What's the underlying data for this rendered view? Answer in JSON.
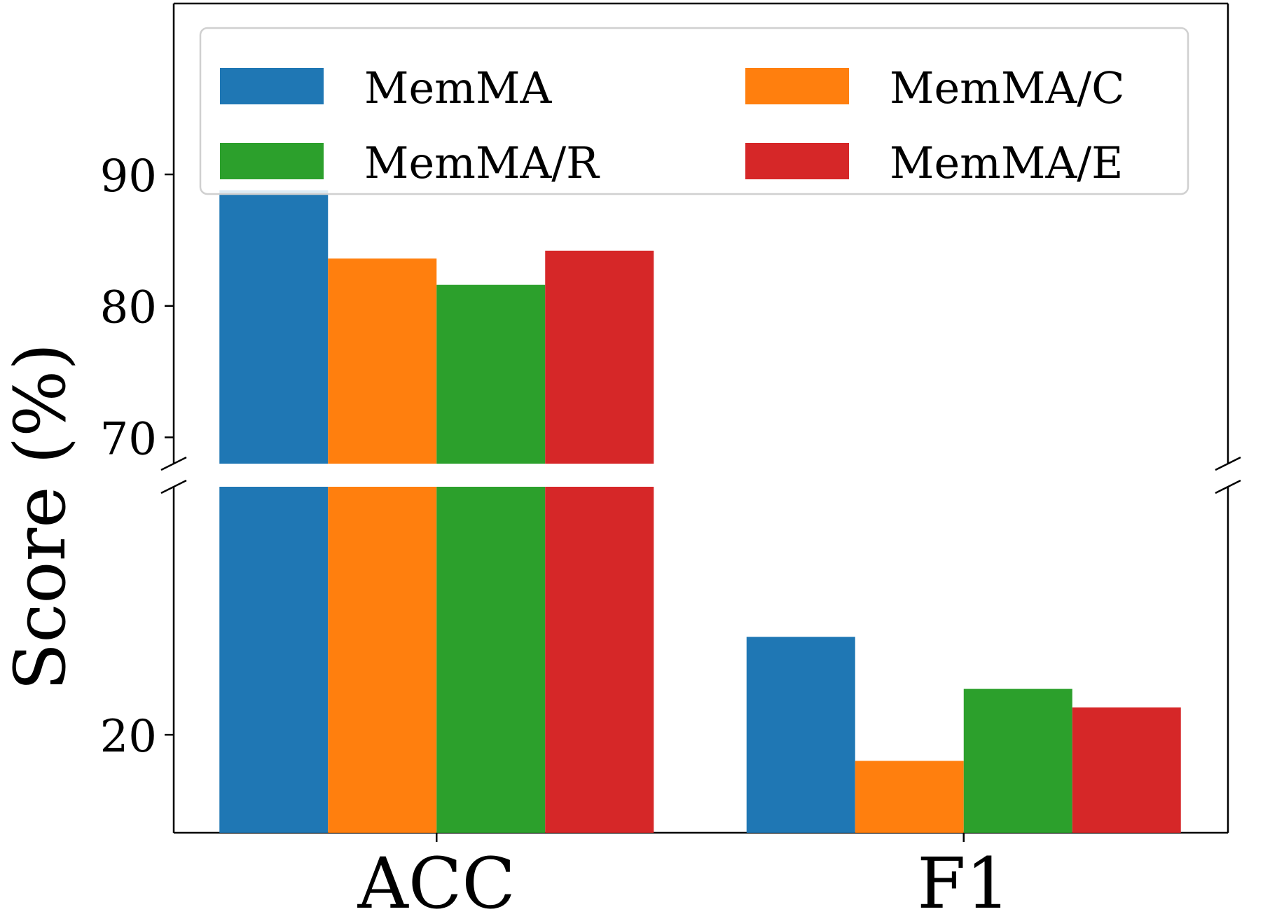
{
  "chart_data": {
    "type": "bar",
    "broken_axis": true,
    "ylabel": "Score (%)",
    "categories": [
      "ACC",
      "F1"
    ],
    "series": [
      {
        "name": "MemMA",
        "color": "#1f77b4",
        "values": [
          88.8,
          27.9
        ]
      },
      {
        "name": "MemMA/C",
        "color": "#ff7f0e",
        "values": [
          83.6,
          17.9
        ]
      },
      {
        "name": "MemMA/R",
        "color": "#2ca02c",
        "values": [
          81.6,
          23.7
        ]
      },
      {
        "name": "MemMA/E",
        "color": "#d62728",
        "values": [
          84.2,
          22.2
        ]
      }
    ],
    "upper_axis": {
      "ylim": [
        68,
        103
      ],
      "ticks": [
        70,
        80,
        90
      ]
    },
    "lower_axis": {
      "ylim": [
        12.1,
        40.0
      ],
      "ticks": [
        20
      ]
    },
    "legend_position": "top",
    "grid": false
  }
}
